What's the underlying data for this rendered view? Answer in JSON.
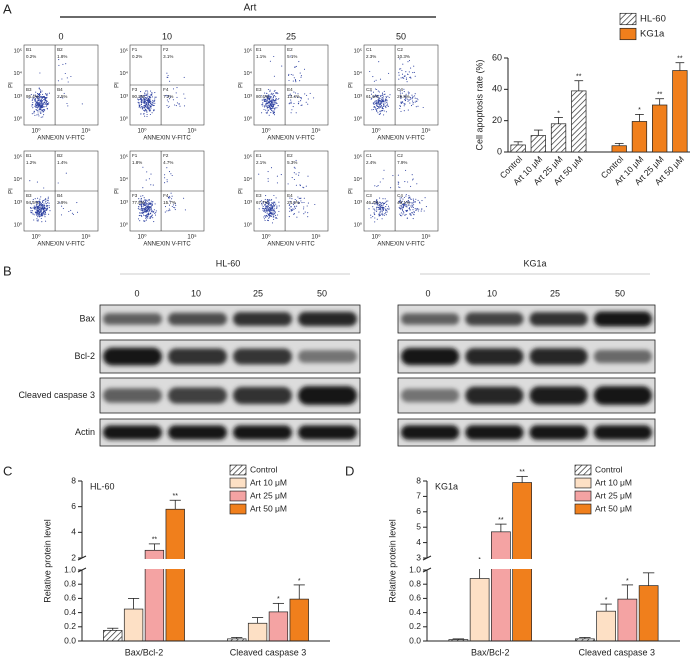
{
  "panel_labels": [
    "A",
    "B",
    "C",
    "D"
  ],
  "flow_cytometry": {
    "treatment": "Art",
    "doses": [
      "0",
      "10",
      "25",
      "50"
    ],
    "x_label": "ANNEXIN V-FITC",
    "y_label": "PI",
    "x_ticks": [
      "10⁰",
      "10⁵"
    ],
    "y_ticks": [
      "10⁵",
      "10⁴",
      "10³",
      "10⁰"
    ],
    "plots": [
      {
        "quadrant_names": [
          "B1",
          "B2",
          "B3",
          "B4"
        ],
        "quadrant_values": [
          "0.2%",
          "1.8%",
          "95.4%",
          "2.5%"
        ]
      },
      {
        "quadrant_names": [
          "F1",
          "F2",
          "F3",
          "F4"
        ],
        "quadrant_values": [
          "0.2%",
          "3.1%",
          "90.3%",
          "7.2%"
        ]
      },
      {
        "quadrant_names": [
          "E1",
          "E2",
          "E3",
          "E4"
        ],
        "quadrant_values": [
          "1.1%",
          "5.1%",
          "80.4%",
          "13.4%"
        ]
      },
      {
        "quadrant_names": [
          "C1",
          "C2",
          "C3",
          "C4"
        ],
        "quadrant_values": [
          "2.3%",
          "10.3%",
          "61.6%",
          "25.8%"
        ]
      },
      {
        "quadrant_names": [
          "B1",
          "B2",
          "B3",
          "B4"
        ],
        "quadrant_values": [
          "1.2%",
          "1.4%",
          "94.5%",
          "2.9%"
        ]
      },
      {
        "quadrant_names": [
          "F1",
          "F2",
          "F3",
          "F4"
        ],
        "quadrant_values": [
          "1.8%",
          "4.7%",
          "77.8%",
          "15.7%"
        ]
      },
      {
        "quadrant_names": [
          "E1",
          "E2",
          "E3",
          "E4"
        ],
        "quadrant_values": [
          "2.1%",
          "5.3%",
          "67.7%",
          "24.9%"
        ]
      },
      {
        "quadrant_names": [
          "C1",
          "C2",
          "C3",
          "C4"
        ],
        "quadrant_values": [
          "2.4%",
          "7.9%",
          "46.4%",
          "43.1%"
        ]
      }
    ]
  },
  "western_blot": {
    "groups": [
      {
        "name": "HL-60",
        "lanes": [
          "0",
          "10",
          "25",
          "50"
        ]
      },
      {
        "name": "KG1a",
        "lanes": [
          "0",
          "10",
          "25",
          "50"
        ]
      }
    ],
    "proteins": [
      "Bax",
      "Bcl-2",
      "Cleaved caspase 3",
      "Actin"
    ]
  },
  "chart_data": [
    {
      "type": "bar",
      "y_label": "Cell apoptosis rate (%)",
      "categories": [
        "Control",
        "Art 10 μM",
        "Art 25 μM",
        "Art 50 μM"
      ],
      "series": [
        {
          "name": "HL-60",
          "color": "#ffffff",
          "pattern": "hatch",
          "values": [
            4.5,
            10.5,
            18,
            39
          ],
          "errors": [
            2,
            3.5,
            4,
            6.5
          ],
          "annotations": [
            null,
            null,
            "*",
            "**"
          ]
        },
        {
          "name": "KG1a",
          "color": "#f07f1c",
          "values": [
            4,
            19.5,
            30,
            52
          ],
          "errors": [
            1.5,
            4.5,
            4,
            5
          ],
          "annotations": [
            null,
            "*",
            "**",
            "**"
          ]
        }
      ],
      "ylim": [
        0,
        60
      ],
      "yticks": [
        0,
        20,
        40,
        60
      ],
      "legend": "top-right"
    },
    {
      "type": "broken_axis_bar",
      "title": "HL-60",
      "y_label": "Relative protein level",
      "categories": [
        "Bax/Bcl-2",
        "Cleaved caspase 3"
      ],
      "series": [
        {
          "name": "Control",
          "color": "#ffffff",
          "pattern": "hatch",
          "values": [
            0.15,
            0.03
          ],
          "errors": [
            0.03,
            0.02
          ],
          "annotations": [
            null,
            null
          ]
        },
        {
          "name": "Art 10 μM",
          "color": "#fde0c5",
          "values": [
            0.45,
            0.25
          ],
          "errors": [
            0.15,
            0.08
          ],
          "annotations": [
            null,
            null
          ]
        },
        {
          "name": "Art 25 μM",
          "color": "#f4a3a3",
          "values": [
            2.6,
            0.41
          ],
          "errors": [
            0.5,
            0.12
          ],
          "annotations": [
            "**",
            "*"
          ]
        },
        {
          "name": "Art 50 μM",
          "color": "#f07f1c",
          "values": [
            5.8,
            0.59
          ],
          "errors": [
            0.7,
            0.2
          ],
          "annotations": [
            "**",
            "*"
          ]
        }
      ],
      "ylim": [
        0,
        8
      ],
      "axis_break": [
        1,
        2
      ],
      "yticks": [
        {
          "value": 0,
          "label": "0.0"
        },
        0.2,
        0.4,
        0.6,
        0.8,
        {
          "value": 1,
          "label": "1.0"
        },
        2,
        4,
        6,
        8
      ],
      "legend": "top-right"
    },
    {
      "type": "broken_axis_bar",
      "title": "KG1a",
      "y_label": "Relative protein level",
      "categories": [
        "Bax/Bcl-2",
        "Cleaved caspase 3"
      ],
      "series": [
        {
          "name": "Control",
          "color": "#ffffff",
          "pattern": "hatch",
          "values": [
            0.02,
            0.03
          ],
          "errors": [
            0.01,
            0.02
          ],
          "annotations": [
            null,
            null
          ]
        },
        {
          "name": "Art 10 μM",
          "color": "#fde0c5",
          "values": [
            0.88,
            0.42
          ],
          "errors": [
            0.25,
            0.1
          ],
          "annotations": [
            "*",
            "*"
          ]
        },
        {
          "name": "Art 25 μM",
          "color": "#f4a3a3",
          "values": [
            4.7,
            0.59
          ],
          "errors": [
            0.5,
            0.2
          ],
          "annotations": [
            "**",
            "*"
          ]
        },
        {
          "name": "Art 50 μM",
          "color": "#f07f1c",
          "values": [
            7.9,
            0.78
          ],
          "errors": [
            0.4,
            0.18
          ],
          "annotations": [
            "**",
            "*"
          ]
        }
      ],
      "ylim": [
        0,
        8
      ],
      "axis_break": [
        1,
        3
      ],
      "yticks": [
        {
          "value": 0,
          "label": "0.0"
        },
        0.2,
        0.4,
        0.6,
        0.8,
        {
          "value": 1,
          "label": "1.0"
        },
        3,
        4,
        5,
        6,
        7,
        8
      ],
      "legend": "top-right"
    }
  ]
}
